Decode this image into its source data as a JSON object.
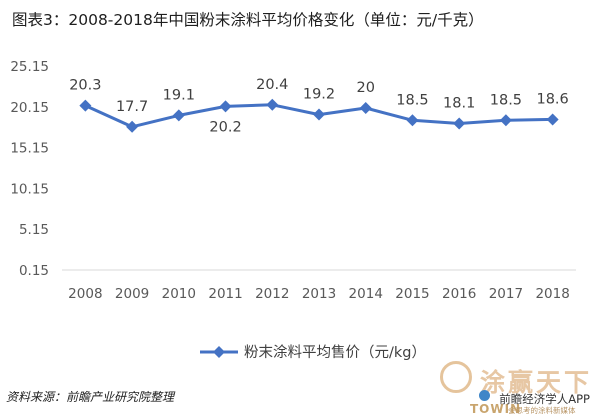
{
  "title": "图表3：2008-2018年中国粉末涂料平均价格变化（单位：元/千克）",
  "source": "资料来源：前瞻产业研究院整理",
  "colors": {
    "series": "#4472c4",
    "grid": "#d9d9d9",
    "text": "#595959"
  },
  "branding": {
    "app": "前瞻经济学人APP",
    "logo_cn": "涂赢天下",
    "logo_en": "TOWIN",
    "logo_sub": "会思考的涂料新媒体"
  },
  "chart_data": {
    "type": "line",
    "categories": [
      "2008",
      "2009",
      "2010",
      "2011",
      "2012",
      "2013",
      "2014",
      "2015",
      "2016",
      "2017",
      "2018"
    ],
    "series": [
      {
        "name": "粉末涂料平均售价（元/kg）",
        "values": [
          20.3,
          17.7,
          19.1,
          20.2,
          20.4,
          19.2,
          20,
          18.5,
          18.1,
          18.5,
          18.6
        ]
      }
    ],
    "data_labels": [
      "20.3",
      "17.7",
      "19.1",
      "20.2",
      "20.4",
      "19.2",
      "20",
      "18.5",
      "18.1",
      "18.5",
      "18.6"
    ],
    "y_ticks": [
      "0.15",
      "5.15",
      "10.15",
      "15.15",
      "20.15",
      "25.15"
    ],
    "ylim": [
      0.15,
      25.15
    ],
    "grid": false,
    "legend": "bottom"
  }
}
